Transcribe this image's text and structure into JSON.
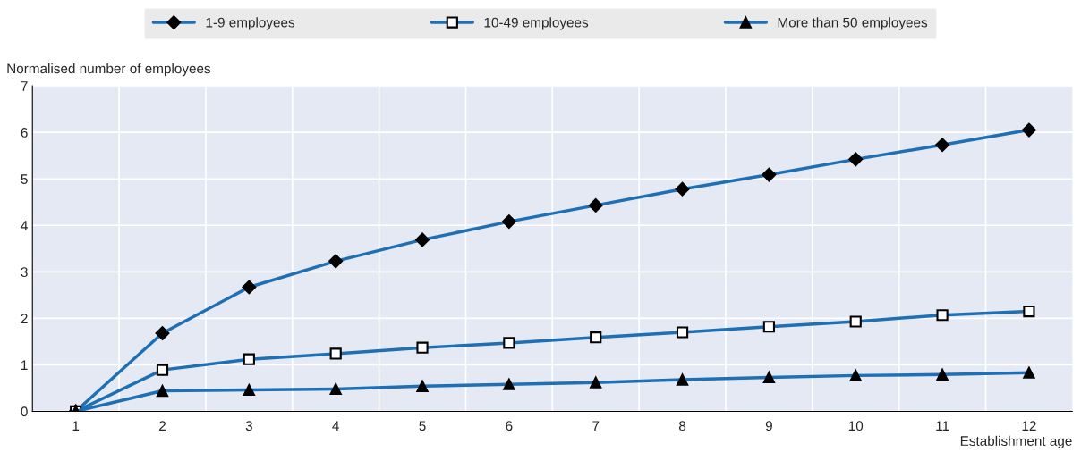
{
  "chart_data": {
    "type": "line",
    "ylabel": "Normalised number of employees",
    "xlabel": "Establishment age",
    "categories": [
      "1",
      "2",
      "3",
      "4",
      "5",
      "6",
      "7",
      "8",
      "9",
      "10",
      "11",
      "12"
    ],
    "series": [
      {
        "name": "1-9 employees",
        "color": "#1f6fb5",
        "marker": "diamond",
        "values": [
          0,
          1.68,
          2.67,
          3.23,
          3.69,
          4.08,
          4.43,
          4.78,
          5.09,
          5.42,
          5.73,
          6.05
        ]
      },
      {
        "name": "10-49 employees",
        "color": "#1f6fb5",
        "marker": "square",
        "values": [
          0,
          0.89,
          1.12,
          1.24,
          1.37,
          1.47,
          1.59,
          1.7,
          1.82,
          1.93,
          2.07,
          2.15
        ]
      },
      {
        "name": "More than 50 employees",
        "color": "#1f6fb5",
        "marker": "triangle",
        "values": [
          0,
          0.44,
          0.46,
          0.48,
          0.54,
          0.58,
          0.62,
          0.68,
          0.73,
          0.77,
          0.79,
          0.83
        ]
      }
    ],
    "ylim": [
      0,
      7
    ],
    "yticks": [
      0,
      1,
      2,
      3,
      4,
      5,
      6,
      7
    ],
    "grid": true,
    "legend": "top",
    "line_style": "solid"
  }
}
